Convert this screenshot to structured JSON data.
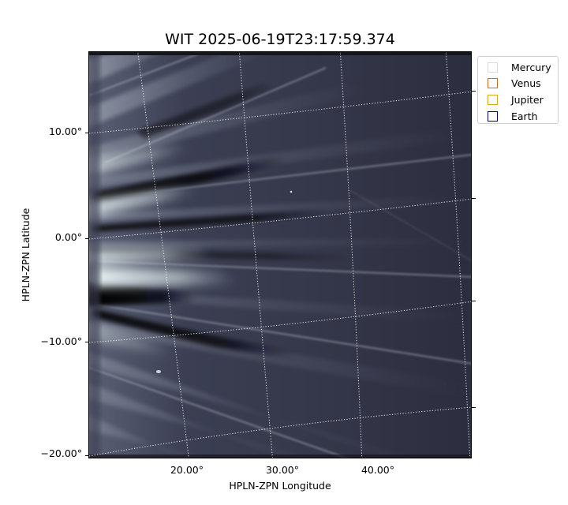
{
  "title": "WIT 2025-06-19T23:17:59.374",
  "axes": {
    "xlabel": "HPLN-ZPN Longitude",
    "ylabel": "HPLN-ZPN Latitude",
    "xticks": [
      "20.00°",
      "30.00°",
      "40.00°"
    ],
    "yticks": [
      "10.00°",
      "0.00°",
      "−10.00°",
      "−20.00°"
    ]
  },
  "legend": {
    "items": [
      {
        "label": "Mercury",
        "color": "#dcdcdc"
      },
      {
        "label": "Venus",
        "color": "#d2691e"
      },
      {
        "label": "Jupiter",
        "color": "#daa520"
      },
      {
        "label": "Earth",
        "color": "#000080"
      }
    ]
  },
  "image": {
    "description_icon": "coronagraph-streamer-image",
    "colormap": "bone"
  }
}
